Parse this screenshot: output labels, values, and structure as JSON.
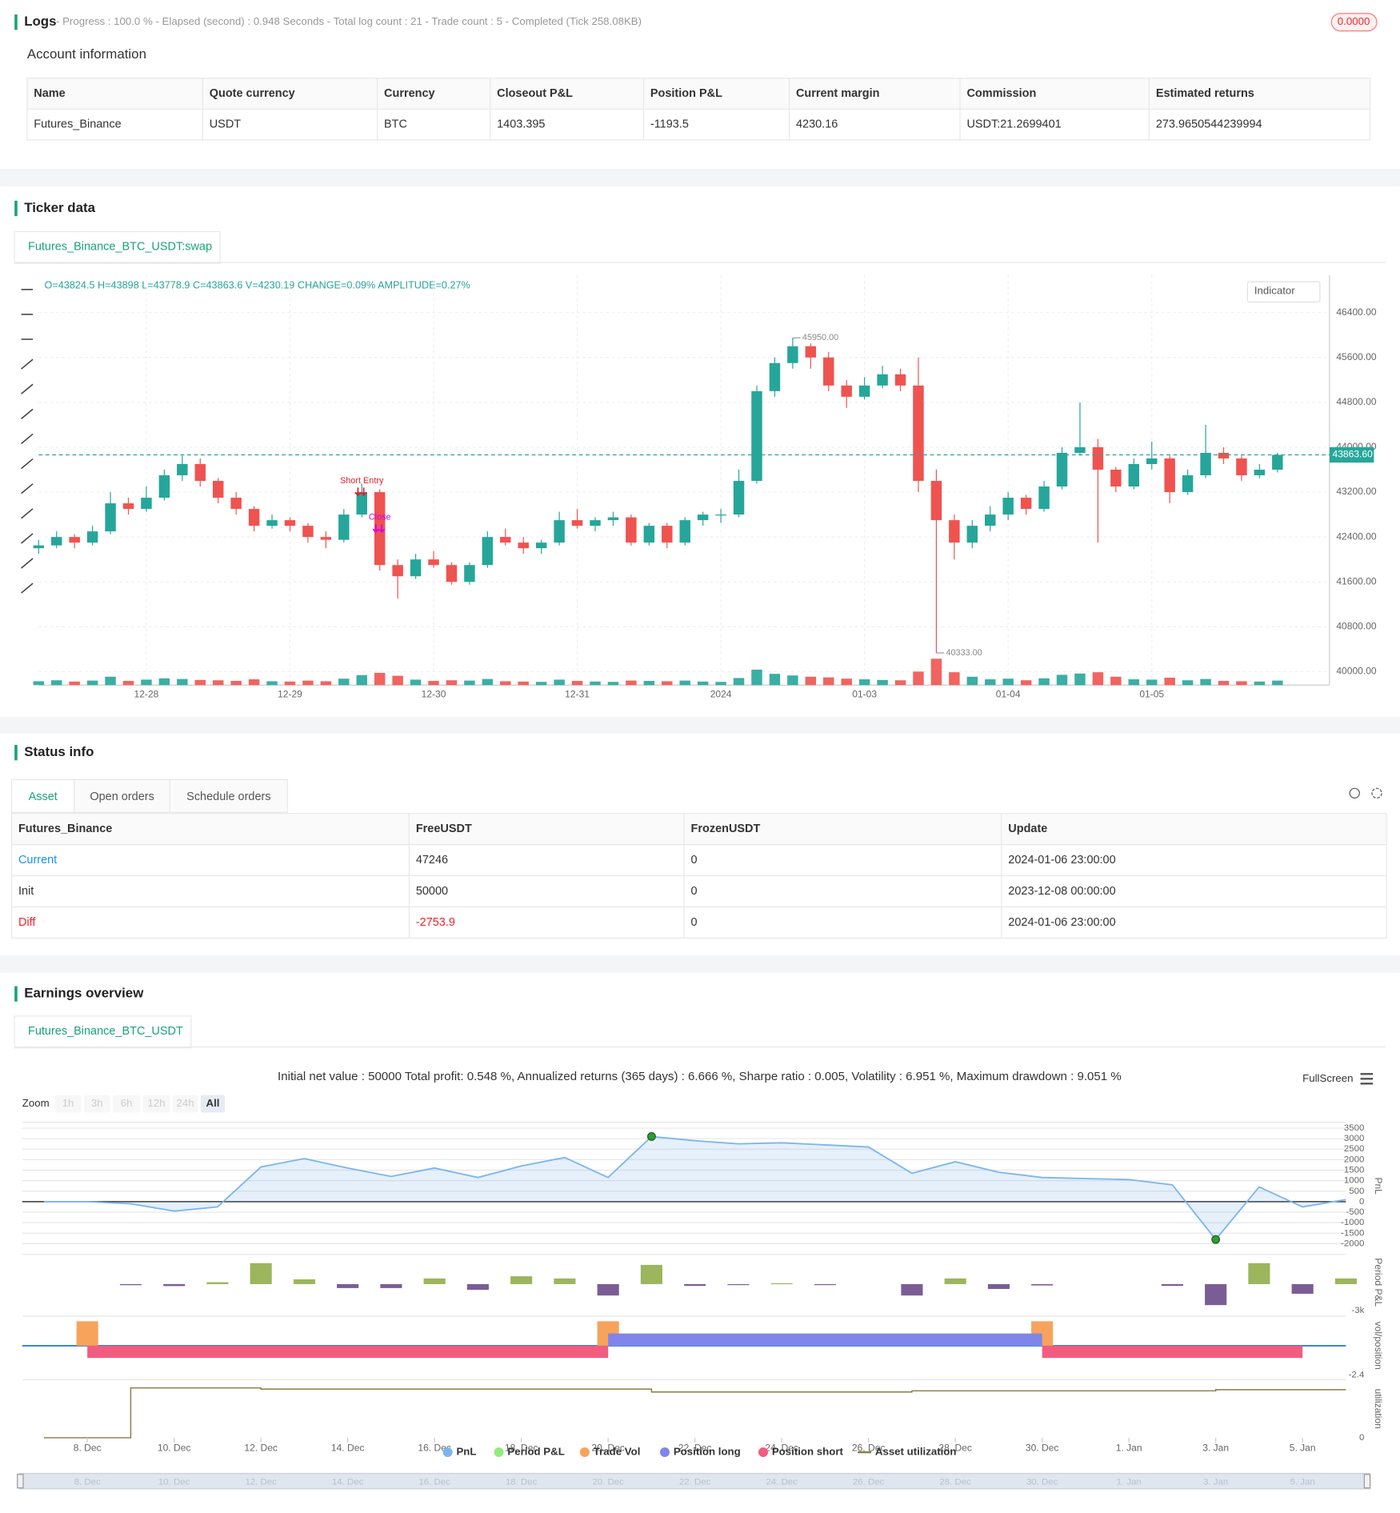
{
  "logs": {
    "title": "Logs",
    "summary": "- Progress : 100.0 % - Elapsed (second) : 0.948  Seconds - Total log count : 21 - Trade count : 5 - Completed (Tick 258.08KB)",
    "badge": "0.0000"
  },
  "account": {
    "title": "Account information",
    "columns": [
      "Name",
      "Quote currency",
      "Currency",
      "Closeout P&L",
      "Position P&L",
      "Current margin",
      "Commission",
      "Estimated returns"
    ],
    "rows": [
      [
        "Futures_Binance",
        "USDT",
        "BTC",
        "1403.395",
        "-1193.5",
        "4230.16",
        "USDT:21.2699401",
        "273.9650544239994"
      ]
    ]
  },
  "ticker": {
    "title": "Ticker data",
    "tab": "Futures_Binance_BTC_USDT:swap",
    "info": "O=43824.5 H=43898 L=43778.9 C=43863.6 V=4230.19 CHANGE=0.09% AMPLITUDE=0.27%",
    "indicator": "Indicator",
    "chart_data": {
      "type": "candlestick",
      "up_color": "#26a69a",
      "down_color": "#ef5350",
      "grid": true,
      "xlim": [
        0,
        71.9
      ],
      "ylim": [
        39760,
        47070
      ],
      "yticks": [
        {
          "value": 40000,
          "label": "40000.00"
        },
        {
          "value": 40800,
          "label": "40800.00"
        },
        {
          "value": 41600,
          "label": "41600.00"
        },
        {
          "value": 42400,
          "label": "42400.00"
        },
        {
          "value": 43200,
          "label": "43200.00"
        },
        {
          "value": 44000,
          "label": "44000.00"
        },
        {
          "value": 44800,
          "label": "44800.00"
        },
        {
          "value": 45600,
          "label": "45600.00"
        },
        {
          "value": 46400,
          "label": "46400.00"
        }
      ],
      "xticks": [
        {
          "value": 6,
          "label": "12-28"
        },
        {
          "value": 14,
          "label": "12-29"
        },
        {
          "value": 22,
          "label": "12-30"
        },
        {
          "value": 30,
          "label": "12-31"
        },
        {
          "value": 38,
          "label": "2024"
        },
        {
          "value": 46,
          "label": "01-03"
        },
        {
          "value": 54,
          "label": "01-04"
        },
        {
          "value": 62,
          "label": "01-05"
        }
      ],
      "candles": [
        [
          42200,
          42350,
          42100,
          42250
        ],
        [
          42250,
          42500,
          42200,
          42400
        ],
        [
          42400,
          42450,
          42200,
          42300
        ],
        [
          42300,
          42600,
          42250,
          42500
        ],
        [
          42500,
          43200,
          42450,
          43000
        ],
        [
          43000,
          43100,
          42800,
          42900
        ],
        [
          42900,
          43300,
          42850,
          43100
        ],
        [
          43100,
          43600,
          43050,
          43500
        ],
        [
          43500,
          43850,
          43400,
          43700
        ],
        [
          43700,
          43800,
          43300,
          43400
        ],
        [
          43400,
          43450,
          43000,
          43100
        ],
        [
          43100,
          43200,
          42800,
          42900
        ],
        [
          42900,
          42950,
          42500,
          42600
        ],
        [
          42600,
          42800,
          42550,
          42700
        ],
        [
          42700,
          42750,
          42500,
          42600
        ],
        [
          42600,
          42650,
          42300,
          42400
        ],
        [
          42400,
          42500,
          42200,
          42350
        ],
        [
          42350,
          42900,
          42300,
          42800
        ],
        [
          42800,
          43350,
          42750,
          43200
        ],
        [
          43200,
          43250,
          41800,
          41900
        ],
        [
          41900,
          42000,
          41300,
          41700
        ],
        [
          41700,
          42100,
          41650,
          42000
        ],
        [
          42000,
          42150,
          41850,
          41900
        ],
        [
          41900,
          41950,
          41550,
          41600
        ],
        [
          41600,
          41950,
          41550,
          41900
        ],
        [
          41900,
          42500,
          41850,
          42400
        ],
        [
          42400,
          42550,
          42250,
          42300
        ],
        [
          42300,
          42400,
          42100,
          42200
        ],
        [
          42200,
          42350,
          42100,
          42300
        ],
        [
          42300,
          42850,
          42250,
          42700
        ],
        [
          42700,
          42900,
          42550,
          42600
        ],
        [
          42600,
          42750,
          42500,
          42700
        ],
        [
          42700,
          42850,
          42600,
          42750
        ],
        [
          42750,
          42800,
          42250,
          42300
        ],
        [
          42300,
          42650,
          42250,
          42600
        ],
        [
          42600,
          42650,
          42200,
          42300
        ],
        [
          42300,
          42750,
          42250,
          42700
        ],
        [
          42700,
          42850,
          42600,
          42800
        ],
        [
          42800,
          42900,
          42650,
          42800
        ],
        [
          42800,
          43600,
          42750,
          43400
        ],
        [
          43400,
          45100,
          43350,
          45000
        ],
        [
          45000,
          45600,
          44900,
          45500
        ],
        [
          45500,
          45950,
          45400,
          45800
        ],
        [
          45800,
          45850,
          45400,
          45600
        ],
        [
          45600,
          45700,
          45000,
          45100
        ],
        [
          45100,
          45200,
          44700,
          44900
        ],
        [
          44900,
          45250,
          44850,
          45100
        ],
        [
          45100,
          45450,
          45050,
          45300
        ],
        [
          45300,
          45400,
          45000,
          45100
        ],
        [
          45100,
          45600,
          43200,
          43400
        ],
        [
          43400,
          43600,
          40333,
          42700
        ],
        [
          42700,
          42800,
          42000,
          42300
        ],
        [
          42300,
          42700,
          42200,
          42600
        ],
        [
          42600,
          42950,
          42500,
          42800
        ],
        [
          42800,
          43200,
          42700,
          43100
        ],
        [
          43100,
          43150,
          42800,
          42900
        ],
        [
          42900,
          43400,
          42850,
          43300
        ],
        [
          43300,
          44000,
          43250,
          43900
        ],
        [
          43900,
          44800,
          43850,
          44000
        ],
        [
          44000,
          44150,
          42300,
          43600
        ],
        [
          43600,
          43650,
          43200,
          43300
        ],
        [
          43300,
          43800,
          43250,
          43700
        ],
        [
          43700,
          44100,
          43600,
          43800
        ],
        [
          43800,
          43850,
          43000,
          43200
        ],
        [
          43200,
          43600,
          43150,
          43500
        ],
        [
          43500,
          44400,
          43450,
          43900
        ],
        [
          43900,
          44000,
          43700,
          43800
        ],
        [
          43800,
          43850,
          43400,
          43500
        ],
        [
          43500,
          43700,
          43450,
          43600
        ],
        [
          43600,
          43900,
          43550,
          43863.6
        ]
      ],
      "volume": [
        120,
        150,
        110,
        140,
        260,
        130,
        170,
        210,
        190,
        160,
        150,
        130,
        180,
        120,
        110,
        140,
        120,
        200,
        310,
        380,
        290,
        170,
        130,
        150,
        140,
        190,
        120,
        110,
        100,
        170,
        130,
        110,
        100,
        140,
        130,
        120,
        140,
        110,
        100,
        220,
        480,
        350,
        300,
        260,
        240,
        200,
        180,
        160,
        150,
        420,
        820,
        400,
        260,
        180,
        200,
        150,
        210,
        320,
        360,
        400,
        260,
        180,
        170,
        230,
        150,
        190,
        130,
        120,
        110,
        140
      ],
      "volume_lim": [
        0,
        1200
      ],
      "last_price": {
        "value": 43863.6,
        "label": "43863.60"
      },
      "max_label": {
        "value": 45950,
        "label": "45950.00"
      },
      "min_label": {
        "value": 40333,
        "label": "40333.00"
      },
      "markers": [
        {
          "index": 18,
          "label": "Short Entry",
          "color": "#e5202e"
        },
        {
          "index": 19,
          "label": "Close",
          "color": "#d500f9"
        }
      ]
    }
  },
  "status": {
    "title": "Status info",
    "tabs": [
      "Asset",
      "Open orders",
      "Schedule orders"
    ],
    "columns": [
      "Futures_Binance",
      "FreeUSDT",
      "FrozenUSDT",
      "Update"
    ],
    "rows": [
      [
        "Current",
        "47246",
        "0",
        "2024-01-06 23:00:00"
      ],
      [
        "Init",
        "50000",
        "0",
        "2023-12-08 00:00:00"
      ],
      [
        "Diff",
        "-2753.9",
        "0",
        "2024-01-06 23:00:00"
      ]
    ]
  },
  "earnings": {
    "title": "Earnings overview",
    "tab": "Futures_Binance_BTC_USDT",
    "summary": "Initial net value : 50000 Total profit: 0.548 %, Annualized returns (365 days) : 6.666 %, Sharpe ratio : 0.005, Volatility : 6.951 %, Maximum drawdown : 9.051 %",
    "fullscreen": "FullScreen",
    "zoom_label": "Zoom",
    "zoom_buttons": [
      "1h",
      "3h",
      "6h",
      "12h",
      "24h",
      "All"
    ],
    "xlim": [
      -1.5,
      29
    ],
    "xticks": [
      {
        "value": 0,
        "label": "8. Dec"
      },
      {
        "value": 2,
        "label": "10. Dec"
      },
      {
        "value": 4,
        "label": "12. Dec"
      },
      {
        "value": 6,
        "label": "14. Dec"
      },
      {
        "value": 8,
        "label": "16. Dec"
      },
      {
        "value": 10,
        "label": "18. Dec"
      },
      {
        "value": 12,
        "label": "20. Dec"
      },
      {
        "value": 14,
        "label": "22. Dec"
      },
      {
        "value": 16,
        "label": "24. Dec"
      },
      {
        "value": 18,
        "label": "26. Dec"
      },
      {
        "value": 20,
        "label": "28. Dec"
      },
      {
        "value": 22,
        "label": "30. Dec"
      },
      {
        "value": 24,
        "label": "1. Jan"
      },
      {
        "value": 26,
        "label": "3. Jan"
      },
      {
        "value": 28,
        "label": "5. Jan"
      }
    ],
    "chart_data": [
      {
        "type": "area",
        "name": "PnL",
        "axis_title": "PnL",
        "color": "#7cb5ec",
        "grid": true,
        "ylim": [
          -2280,
          3780
        ],
        "yticks": [
          -2000,
          -1500,
          -1000,
          -500,
          0,
          500,
          1000,
          1500,
          2000,
          2500,
          3000,
          3500
        ],
        "x": [
          -1,
          0,
          1,
          2,
          3,
          4,
          5,
          6,
          7,
          8,
          9,
          10,
          11,
          12,
          13,
          14,
          15,
          16,
          17,
          18,
          19,
          20,
          21,
          22,
          23,
          24,
          25,
          26,
          27,
          28,
          29
        ],
        "values": [
          0,
          0,
          -100,
          -450,
          -250,
          1650,
          2050,
          1600,
          1200,
          1600,
          1150,
          1700,
          2100,
          1150,
          3100,
          2900,
          2750,
          2800,
          2700,
          2600,
          1350,
          1900,
          1400,
          1150,
          1100,
          1050,
          800,
          -1800,
          700,
          -250,
          100
        ]
      },
      {
        "type": "bar",
        "name": "Period P&L",
        "axis_title": "Period P&L",
        "color": "#90ed7d",
        "positive_color": "#9bb65d",
        "negative_color": "#7b5d96",
        "ylim": [
          -3000,
          3400
        ],
        "yticks": [
          {
            "value": -3000,
            "label": "-3k"
          }
        ],
        "x": [
          1,
          2,
          3,
          4,
          5,
          6,
          7,
          8,
          9,
          10,
          11,
          12,
          13,
          14,
          15,
          16,
          17,
          19,
          20,
          21,
          22,
          25,
          26,
          27,
          28,
          29
        ],
        "values": [
          -120,
          -220,
          220,
          2400,
          550,
          -450,
          -450,
          650,
          -650,
          900,
          650,
          -1300,
          2200,
          -200,
          -110,
          100,
          -100,
          -1300,
          650,
          -550,
          -150,
          -200,
          -2400,
          2400,
          -1100,
          650
        ]
      },
      {
        "type": "position",
        "axis_title": "vol/position",
        "ylim": [
          -2.4,
          2.42
        ],
        "yticks": [
          -2.4
        ],
        "series": [
          {
            "name": "Trade Vol",
            "color": "#f7a35c",
            "x": [
              0,
              12,
              22
            ],
            "values": [
              2,
              2,
              2
            ]
          },
          {
            "name": "Position long",
            "color": "#8085e9",
            "x_start": [
              12
            ],
            "x_end": [
              22
            ],
            "values": [
              1
            ]
          },
          {
            "name": "Position short",
            "color": "#f15c80",
            "x_start": [
              0,
              22
            ],
            "x_end": [
              12,
              28
            ],
            "values": [
              -1,
              -1
            ]
          }
        ]
      },
      {
        "type": "line",
        "name": "Asset utilization",
        "axis_title": "utilization",
        "color": "#8c7a3f",
        "ylim": [
          0,
          1
        ],
        "yticks": [
          0
        ],
        "x": [
          -1,
          1,
          1,
          4,
          4,
          13,
          13,
          19,
          19,
          26,
          26,
          29
        ],
        "values": [
          0,
          0,
          0.86,
          0.86,
          0.84,
          0.84,
          0.79,
          0.79,
          0.81,
          0.81,
          0.83,
          0.83
        ]
      }
    ]
  }
}
